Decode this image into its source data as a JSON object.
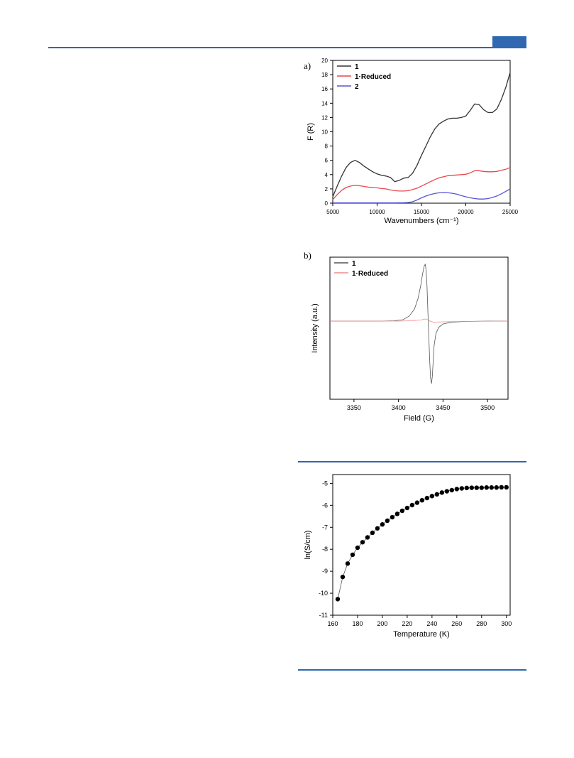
{
  "page": {
    "header_color": "#2f67b1"
  },
  "panel_labels": [
    "a)",
    "b)"
  ],
  "chart_data": [
    {
      "type": "line",
      "panel": "a)",
      "xlabel": "Wavenumbers (cm⁻¹)",
      "ylabel": "F (R)",
      "xlim": [
        5000,
        25000
      ],
      "ylim": [
        0,
        20
      ],
      "x_ticks": [
        5000,
        10000,
        15000,
        20000,
        25000
      ],
      "y_ticks": [
        0,
        2,
        4,
        6,
        8,
        10,
        12,
        14,
        16,
        18,
        20
      ],
      "legend_position": "top-left",
      "series": [
        {
          "name": "1",
          "color": "#333333",
          "x": [
            5000,
            5500,
            6000,
            6500,
            7000,
            7500,
            8000,
            8500,
            9000,
            9500,
            10000,
            10500,
            11000,
            11500,
            12000,
            12500,
            13000,
            13500,
            14000,
            14500,
            15000,
            15500,
            16000,
            16500,
            17000,
            17500,
            18000,
            18500,
            19000,
            19500,
            20000,
            20500,
            21000,
            21500,
            22000,
            22500,
            23000,
            23500,
            24000,
            24500,
            25000
          ],
          "y": [
            0.9,
            2.4,
            3.8,
            5.0,
            5.7,
            6.0,
            5.7,
            5.2,
            4.8,
            4.4,
            4.1,
            3.9,
            3.8,
            3.6,
            3.0,
            3.2,
            3.5,
            3.6,
            4.2,
            5.3,
            6.7,
            8.0,
            9.3,
            10.4,
            11.1,
            11.5,
            11.8,
            11.9,
            11.9,
            12.0,
            12.2,
            13.0,
            13.9,
            13.8,
            13.1,
            12.7,
            12.7,
            13.2,
            14.5,
            16.2,
            18.3
          ]
        },
        {
          "name": "1·Reduced",
          "color": "#e8474d",
          "x": [
            5000,
            5500,
            6000,
            6500,
            7000,
            7500,
            8000,
            8500,
            9000,
            9500,
            10000,
            10500,
            11000,
            11500,
            12000,
            12500,
            13000,
            13500,
            14000,
            14500,
            15000,
            15500,
            16000,
            16500,
            17000,
            17500,
            18000,
            18500,
            19000,
            19500,
            20000,
            20500,
            21000,
            21500,
            22000,
            22500,
            23000,
            23500,
            24000,
            24500,
            25000
          ],
          "y": [
            0.5,
            1.2,
            1.8,
            2.2,
            2.4,
            2.5,
            2.45,
            2.35,
            2.25,
            2.2,
            2.15,
            2.05,
            2.0,
            1.85,
            1.75,
            1.7,
            1.7,
            1.75,
            1.9,
            2.1,
            2.4,
            2.7,
            3.0,
            3.3,
            3.55,
            3.7,
            3.85,
            3.9,
            3.95,
            4.0,
            4.05,
            4.25,
            4.55,
            4.55,
            4.45,
            4.4,
            4.4,
            4.45,
            4.6,
            4.75,
            5.0
          ]
        },
        {
          "name": "2",
          "color": "#5656d8",
          "x": [
            5000,
            6000,
            7000,
            8000,
            9000,
            10000,
            11000,
            12000,
            13000,
            13500,
            14000,
            14500,
            15000,
            15500,
            16000,
            16500,
            17000,
            17500,
            18000,
            18500,
            19000,
            19500,
            20000,
            20500,
            21000,
            21500,
            22000,
            22500,
            23000,
            23500,
            24000,
            24500,
            25000
          ],
          "y": [
            0.05,
            0.05,
            0.05,
            0.05,
            0.05,
            0.05,
            0.05,
            0.05,
            0.07,
            0.1,
            0.2,
            0.45,
            0.75,
            1.0,
            1.2,
            1.35,
            1.45,
            1.48,
            1.45,
            1.38,
            1.25,
            1.05,
            0.9,
            0.75,
            0.65,
            0.58,
            0.58,
            0.65,
            0.8,
            1.0,
            1.3,
            1.65,
            2.0
          ]
        }
      ]
    },
    {
      "type": "line",
      "panel": "b)",
      "xlabel": "Field (G)",
      "ylabel": "Intensity (a.u.)",
      "xlim": [
        3323,
        3523
      ],
      "ylim": [
        -1.1,
        0.9
      ],
      "x_ticks": [
        3350,
        3400,
        3450,
        3500
      ],
      "legend_position": "top-left",
      "series": [
        {
          "name": "1",
          "color": "#555555",
          "x": [
            3323,
            3380,
            3395,
            3405,
            3412,
            3418,
            3422,
            3425,
            3427,
            3429,
            3430,
            3431,
            3432,
            3433,
            3434,
            3435,
            3436,
            3437,
            3438,
            3439,
            3440,
            3442,
            3445,
            3450,
            3460,
            3475,
            3500,
            3523
          ],
          "y": [
            0,
            0,
            0.005,
            0.02,
            0.07,
            0.17,
            0.32,
            0.5,
            0.66,
            0.78,
            0.8,
            0.72,
            0.5,
            0.15,
            -0.2,
            -0.55,
            -0.8,
            -0.88,
            -0.78,
            -0.55,
            -0.35,
            -0.18,
            -0.09,
            -0.04,
            -0.015,
            -0.005,
            0,
            0
          ]
        },
        {
          "name": "1·Reduced",
          "color": "#f08b8b",
          "x": [
            3323,
            3400,
            3415,
            3425,
            3430,
            3433,
            3436,
            3440,
            3450,
            3470,
            3523
          ],
          "y": [
            0,
            0,
            0.005,
            0.015,
            0.03,
            0.02,
            -0.005,
            -0.015,
            -0.01,
            -0.005,
            0
          ]
        }
      ]
    },
    {
      "type": "scatter",
      "xlabel": "Temperature (K)",
      "ylabel": "ln(S/cm)",
      "xlim": [
        160,
        303
      ],
      "ylim": [
        -11,
        -4.6
      ],
      "x_ticks": [
        160,
        180,
        200,
        220,
        240,
        260,
        280,
        300
      ],
      "y_ticks": [
        -11,
        -10,
        -9,
        -8,
        -7,
        -6,
        -5
      ],
      "series": [
        {
          "color": "#000000",
          "x": [
            164,
            168,
            172,
            176,
            180,
            184,
            188,
            192,
            196,
            200,
            204,
            208,
            212,
            216,
            220,
            224,
            228,
            232,
            236,
            240,
            244,
            248,
            252,
            256,
            260,
            264,
            268,
            272,
            276,
            280,
            284,
            288,
            292,
            296,
            300
          ],
          "y": [
            -10.27,
            -9.26,
            -8.65,
            -8.25,
            -7.93,
            -7.68,
            -7.46,
            -7.25,
            -7.05,
            -6.87,
            -6.7,
            -6.54,
            -6.39,
            -6.25,
            -6.12,
            -5.99,
            -5.88,
            -5.77,
            -5.67,
            -5.58,
            -5.5,
            -5.42,
            -5.36,
            -5.31,
            -5.26,
            -5.23,
            -5.21,
            -5.2,
            -5.2,
            -5.2,
            -5.19,
            -5.19,
            -5.19,
            -5.18,
            -5.18
          ]
        }
      ]
    }
  ]
}
